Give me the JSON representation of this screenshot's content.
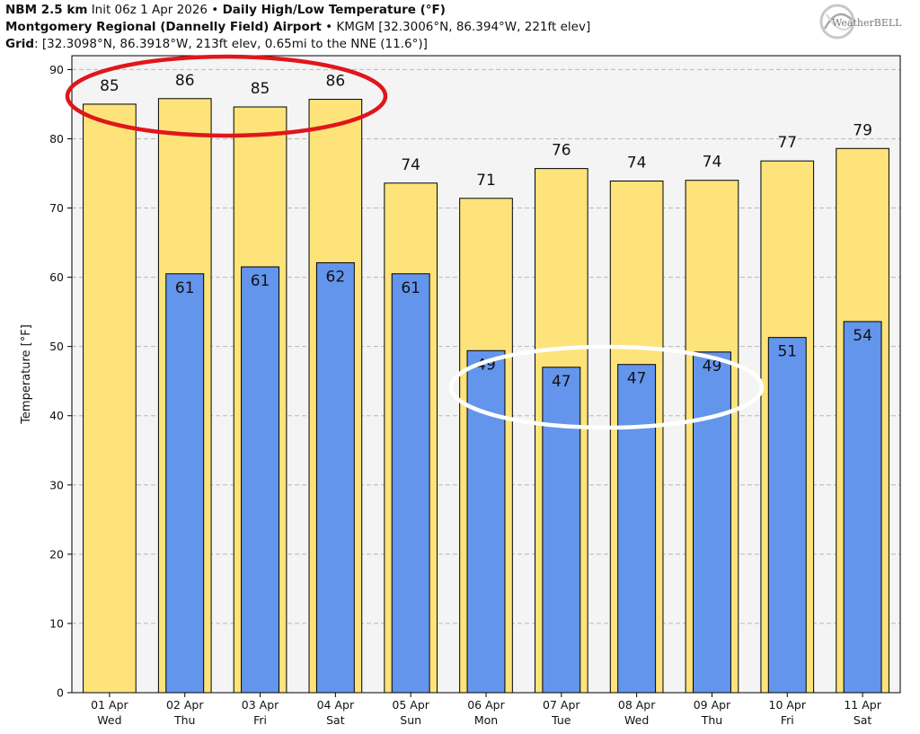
{
  "header": {
    "model": "NBM 2.5 km",
    "init": "Init 06z 1 Apr 2026",
    "bullet": "•",
    "product": "Daily High/Low Temperature (°F)",
    "station": "Montgomery Regional (Dannelly Field) Airport",
    "station_info": "KMGM [32.3006°N, 86.394°W, 221ft elev]",
    "grid_label": "Grid",
    "grid_info": ": [32.3098°N, 86.3918°W, 213ft elev, 0.65mi to the NNE (11.6°)]"
  },
  "logo": {
    "text": "WeatherBELL",
    "icon": "weatherbell-swirl-logo"
  },
  "colors": {
    "high_bar": "#fde37a",
    "low_bar": "#6495ed",
    "plot_bg": "#f4f4f4",
    "red_annotation": "#e0161b",
    "white_annotation": "#ffffff"
  },
  "chart_data": {
    "type": "bar",
    "ylabel": "Temperature [°F]",
    "xlabel": "",
    "ylim": [
      0,
      92
    ],
    "yticks": [
      0,
      10,
      20,
      30,
      40,
      50,
      60,
      70,
      80,
      90
    ],
    "grid": true,
    "categories": [
      [
        "01 Apr",
        "Wed"
      ],
      [
        "02 Apr",
        "Thu"
      ],
      [
        "03 Apr",
        "Fri"
      ],
      [
        "04 Apr",
        "Sat"
      ],
      [
        "05 Apr",
        "Sun"
      ],
      [
        "06 Apr",
        "Mon"
      ],
      [
        "07 Apr",
        "Tue"
      ],
      [
        "08 Apr",
        "Wed"
      ],
      [
        "09 Apr",
        "Thu"
      ],
      [
        "10 Apr",
        "Fri"
      ],
      [
        "11 Apr",
        "Sat"
      ]
    ],
    "series": [
      {
        "values": [
          85,
          85.8,
          84.6,
          85.7,
          73.6,
          71.4,
          75.7,
          73.9,
          74.0,
          76.8,
          78.6
        ],
        "labels": [
          "85",
          "86",
          "85",
          "86",
          "74",
          "71",
          "76",
          "74",
          "74",
          "77",
          "79"
        ]
      },
      {
        "values": [
          null,
          60.5,
          61.5,
          62.1,
          60.5,
          49.4,
          47.0,
          47.4,
          49.2,
          51.3,
          53.6
        ],
        "labels": [
          "",
          "61",
          "61",
          "62",
          "61",
          "49",
          "47",
          "47",
          "49",
          "51",
          "54"
        ]
      }
    ],
    "annotations": [
      {
        "shape": "ellipse",
        "color": "red",
        "around": "high values 01 Apr – 04 Apr"
      },
      {
        "shape": "ellipse",
        "color": "white",
        "around": "low values 06 Apr – 09 Apr"
      }
    ]
  }
}
